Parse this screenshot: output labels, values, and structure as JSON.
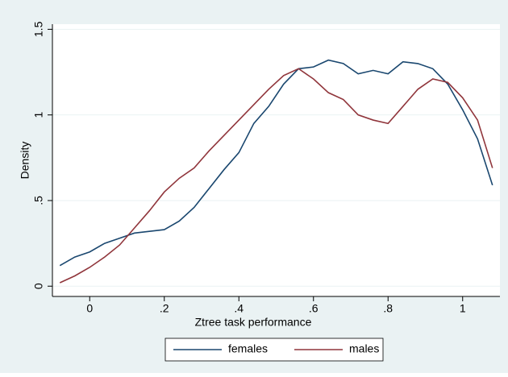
{
  "chart_data": {
    "type": "line",
    "x_label": "Ztree task performance",
    "y_label": "Density",
    "x": [
      -0.08,
      -0.04,
      0,
      0.04,
      0.08,
      0.12,
      0.16,
      0.2,
      0.24,
      0.28,
      0.32,
      0.36,
      0.4,
      0.44,
      0.48,
      0.52,
      0.56,
      0.6,
      0.64,
      0.68,
      0.72,
      0.76,
      0.8,
      0.84,
      0.88,
      0.92,
      0.96,
      1.0,
      1.04,
      1.08
    ],
    "series": [
      {
        "name": "females",
        "color": "#1a476f",
        "values": [
          0.12,
          0.17,
          0.2,
          0.25,
          0.28,
          0.31,
          0.32,
          0.33,
          0.38,
          0.46,
          0.57,
          0.68,
          0.78,
          0.95,
          1.05,
          1.18,
          1.27,
          1.28,
          1.32,
          1.3,
          1.24,
          1.26,
          1.24,
          1.31,
          1.3,
          1.27,
          1.18,
          1.03,
          0.86,
          0.59
        ]
      },
      {
        "name": "males",
        "color": "#90353b",
        "values": [
          0.02,
          0.06,
          0.11,
          0.17,
          0.24,
          0.34,
          0.44,
          0.55,
          0.63,
          0.69,
          0.79,
          0.88,
          0.97,
          1.06,
          1.15,
          1.23,
          1.27,
          1.21,
          1.13,
          1.09,
          1.0,
          0.97,
          0.95,
          1.05,
          1.15,
          1.21,
          1.19,
          1.1,
          0.97,
          0.69
        ]
      }
    ],
    "xlim": [
      -0.1,
      1.1
    ],
    "ylim": [
      -0.06,
      1.53
    ],
    "xticks": [
      0,
      {
        "value": 0.2,
        "label": ".2"
      },
      {
        "value": 0.4,
        "label": ".4"
      },
      {
        "value": 0.6,
        "label": ".6"
      },
      {
        "value": 0.8,
        "label": ".8"
      },
      1
    ],
    "yticks": [
      0,
      {
        "value": 0.5,
        "label": ".5"
      },
      1,
      {
        "value": 1.5,
        "label": "1.5"
      }
    ],
    "grid": true,
    "legend": "bottom"
  }
}
